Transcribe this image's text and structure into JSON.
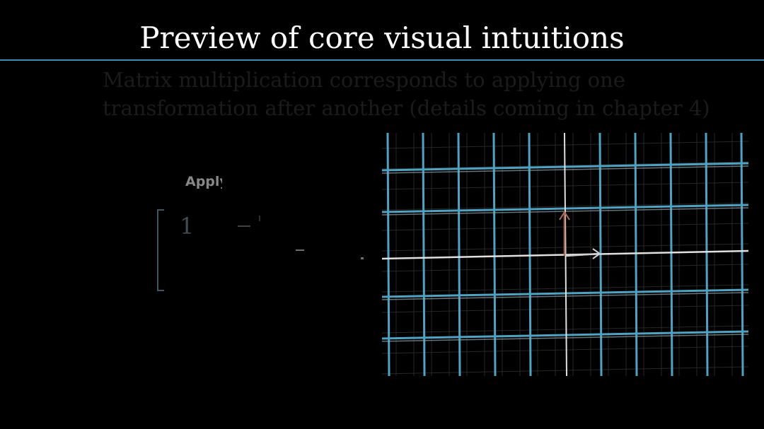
{
  "title": "Preview of core visual intuitions",
  "caption": {
    "line1": "Matrix multiplication corresponds to applying one",
    "line2": "transformation after another (details coming in chapter 4)"
  },
  "left_panel": {
    "apply_label": "Apply",
    "matrix_entry": "1"
  },
  "colors": {
    "background": "#000000",
    "title_text": "#ffffff",
    "rule": "#3a8eb0",
    "grid_line": "#4fa2c2",
    "fine_grid": "#2b2b2b",
    "axis": "#e0e0e0",
    "basis_i": "#cfcfcf",
    "basis_j": "#a86a5c"
  },
  "icons": {
    "basis_i_arrow": "arrow-right-icon",
    "basis_j_arrow": "arrow-up-icon"
  }
}
